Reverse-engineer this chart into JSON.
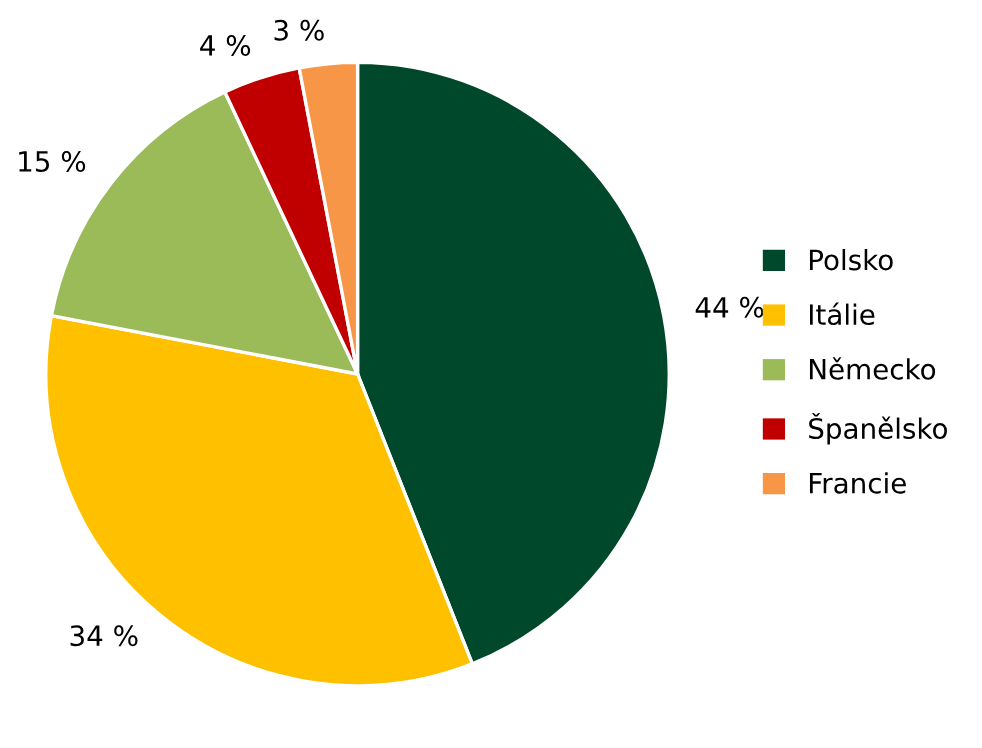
{
  "chart_data": {
    "type": "pie",
    "categories": [
      "Polsko",
      "Itálie",
      "Německo",
      "Španělsko",
      "Francie"
    ],
    "values": [
      44,
      34,
      15,
      4,
      3
    ],
    "colors": [
      "#00482b",
      "#ffc000",
      "#9bbb59",
      "#c00000",
      "#f79646"
    ],
    "value_labels": [
      "44 %",
      "34 %",
      "15 %",
      "4 %",
      "3 %"
    ],
    "legend": "right"
  }
}
